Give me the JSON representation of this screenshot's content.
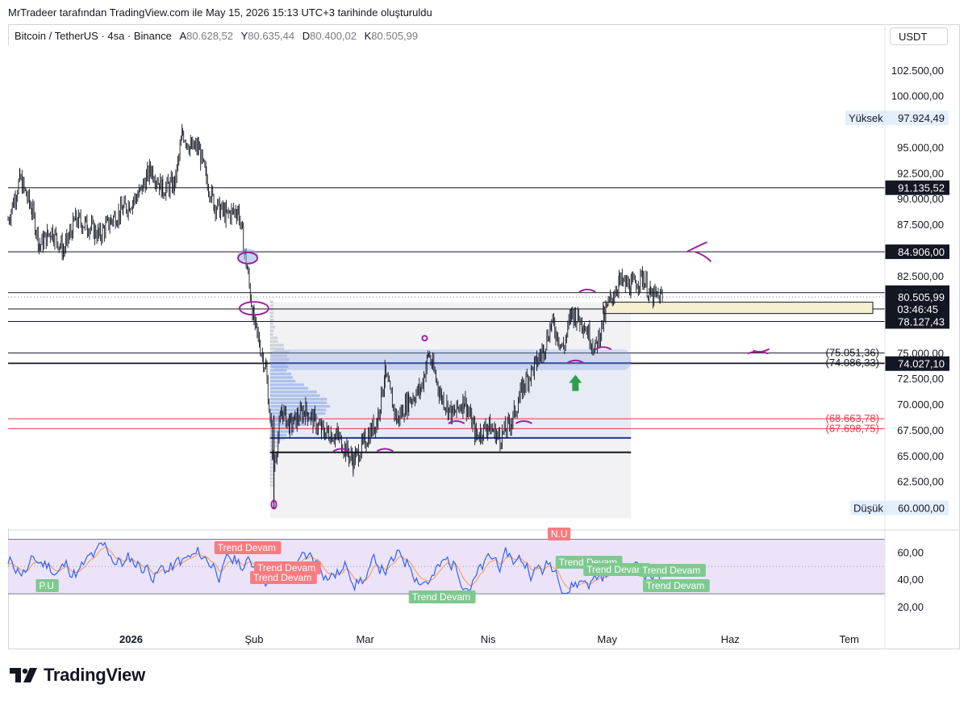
{
  "header": {
    "snapshot_text": "MrTradeer tarafından TradingView.com ile May 15, 2026 15:13 UTC+3 tarihinde oluşturuldu"
  },
  "symbol": {
    "name": "Bitcoin / TetherUS · 4sa · Binance",
    "open_label": "A",
    "open": "80.628,52",
    "high_label": "Y",
    "high": "80.635,44",
    "low_label": "D",
    "low": "80.400,02",
    "close_label": "K",
    "close": "80.505,99"
  },
  "currency": "USDT",
  "branding": "TradingView",
  "colors": {
    "accent_blue": "#2962ff",
    "down_red": "#f23645",
    "up_green": "#22ab94",
    "purple": "#a020a0",
    "zone_yellow": "#f5f0d0"
  },
  "chart_data": [
    {
      "type": "candlestick",
      "title": "Bitcoin / TetherUS · 4sa · Binance",
      "ylim": [
        58000,
        105000
      ],
      "y_ticks": [
        "102.500,00",
        "100.000,00",
        "95.000,00",
        "92.500,00",
        "90.000,00",
        "87.500,00",
        "82.500,00",
        "75.000,00",
        "72.500,00",
        "70.000,00",
        "67.500,00",
        "65.000,00",
        "62.500,00"
      ],
      "x_ticks": [
        "2026",
        "Şub",
        "Mar",
        "Nis",
        "May",
        "Haz",
        "Tem"
      ],
      "close_path": [
        [
          "2025-12-01",
          88000
        ],
        [
          "2025-12-04",
          92000
        ],
        [
          "2025-12-07",
          89000
        ],
        [
          "2025-12-09",
          85500
        ],
        [
          "2025-12-12",
          87000
        ],
        [
          "2025-12-15",
          85000
        ],
        [
          "2025-12-18",
          88000
        ],
        [
          "2025-12-21",
          87500
        ],
        [
          "2025-12-24",
          86500
        ],
        [
          "2025-12-27",
          88000
        ],
        [
          "2025-12-30",
          89000
        ],
        [
          "2026-01-03",
          90500
        ],
        [
          "2026-01-06",
          93000
        ],
        [
          "2026-01-09",
          91000
        ],
        [
          "2026-01-12",
          91500
        ],
        [
          "2026-01-14",
          96500
        ],
        [
          "2026-01-16",
          95000
        ],
        [
          "2026-01-18",
          95000
        ],
        [
          "2026-01-20",
          92000
        ],
        [
          "2026-01-22",
          89500
        ],
        [
          "2026-01-25",
          88500
        ],
        [
          "2026-01-28",
          89000
        ],
        [
          "2026-01-30",
          84000
        ],
        [
          "2026-02-01",
          78000
        ],
        [
          "2026-02-04",
          73500
        ],
        [
          "2026-02-06",
          64000
        ],
        [
          "2026-02-08",
          69500
        ],
        [
          "2026-02-10",
          68000
        ],
        [
          "2026-02-14",
          69500
        ],
        [
          "2026-02-18",
          67500
        ],
        [
          "2026-02-22",
          67000
        ],
        [
          "2026-02-26",
          64500
        ],
        [
          "2026-03-01",
          66500
        ],
        [
          "2026-03-04",
          68500
        ],
        [
          "2026-03-06",
          73000
        ],
        [
          "2026-03-09",
          68500
        ],
        [
          "2026-03-12",
          70500
        ],
        [
          "2026-03-15",
          71500
        ],
        [
          "2026-03-17",
          75000
        ],
        [
          "2026-03-20",
          71000
        ],
        [
          "2026-03-23",
          69000
        ],
        [
          "2026-03-26",
          70500
        ],
        [
          "2026-03-29",
          67000
        ],
        [
          "2026-04-01",
          68000
        ],
        [
          "2026-04-04",
          66800
        ],
        [
          "2026-04-07",
          68500
        ],
        [
          "2026-04-10",
          72000
        ],
        [
          "2026-04-13",
          74000
        ],
        [
          "2026-04-15",
          75500
        ],
        [
          "2026-04-17",
          78000
        ],
        [
          "2026-04-20",
          75500
        ],
        [
          "2026-04-22",
          79000
        ],
        [
          "2026-04-25",
          78000
        ],
        [
          "2026-04-28",
          75500
        ],
        [
          "2026-05-01",
          79500
        ],
        [
          "2026-05-04",
          82000
        ],
        [
          "2026-05-07",
          81500
        ],
        [
          "2026-05-10",
          82500
        ],
        [
          "2026-05-12",
          80500
        ],
        [
          "2026-05-15",
          80505.99
        ]
      ],
      "horizontal_lines": [
        {
          "value": 91135.52,
          "label": "91.135,52"
        },
        {
          "value": 84906.0,
          "label": "84.906,00"
        },
        {
          "value": 80928.38,
          "label": "80.928,38"
        },
        {
          "value": 79339.8,
          "label": "79.339,80"
        },
        {
          "value": 78127.43,
          "label": "78.127,43"
        },
        {
          "value": 75051.36,
          "label": "(75.051,36)"
        },
        {
          "value": 74086.33,
          "label": "(74.086,33)"
        },
        {
          "value": 74027.1,
          "label": "74.027,10"
        },
        {
          "value": 68663.78,
          "label": "(68.663,78)"
        },
        {
          "value": 67698.75,
          "label": "(67.698,75)"
        }
      ],
      "current_price": {
        "value": 80505.99,
        "label": "80.505,99",
        "countdown": "03:46:45"
      },
      "high_marker": {
        "label": "Yüksek",
        "value": "97.924,49"
      },
      "low_marker": {
        "label": "Düşük",
        "value": "60.000,00"
      }
    },
    {
      "type": "line",
      "title": "",
      "ylim": [
        10,
        75
      ],
      "y_ticks": [
        "60,00",
        "40,00",
        "20,00"
      ],
      "band": [
        30,
        70
      ],
      "labels": [
        {
          "text": "Trend Devam",
          "kind": "bear"
        },
        {
          "text": "Trend Devam",
          "kind": "bear"
        },
        {
          "text": "Trend Devam",
          "kind": "bear"
        },
        {
          "text": "Trend Devam",
          "kind": "bull"
        },
        {
          "text": "Trend Devam",
          "kind": "bull"
        },
        {
          "text": "Trend Devam",
          "kind": "bull"
        },
        {
          "text": "Trend Devam",
          "kind": "bull"
        },
        {
          "text": "Trend Devam",
          "kind": "bull"
        },
        {
          "text": "P.U",
          "kind": "bull"
        },
        {
          "text": "N.U",
          "kind": "bear"
        }
      ]
    }
  ]
}
